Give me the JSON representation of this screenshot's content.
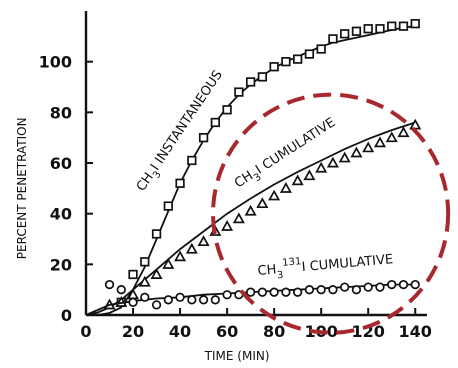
{
  "chart_data": {
    "type": "line",
    "title": "",
    "xlabel": "TIME (MIN)",
    "ylabel": "PERCENT PENETRATION",
    "xlim": [
      0,
      145
    ],
    "ylim": [
      0,
      120
    ],
    "xticks": [
      0,
      20,
      40,
      60,
      80,
      100,
      120,
      140
    ],
    "yticks": [
      0,
      20,
      40,
      60,
      80,
      100
    ],
    "xtick_labels": [
      "0",
      "20",
      "40",
      "60",
      "80",
      "100",
      "120",
      "140"
    ],
    "ytick_labels": [
      "0",
      "20",
      "40",
      "60",
      "80",
      "100"
    ],
    "grid": false,
    "series": [
      {
        "name": "CH3I INSTANTANEOUS",
        "marker": "square",
        "label_parts": [
          "CH",
          "3",
          "I INSTANTANEOUS"
        ],
        "curve": {
          "x": [
            0,
            5,
            10,
            15,
            20,
            25,
            30,
            35,
            40,
            45,
            50,
            55,
            60,
            65,
            70,
            75,
            80,
            85,
            90,
            95,
            100,
            105,
            110,
            115,
            120,
            125,
            130,
            135,
            140
          ],
          "y": [
            0,
            0,
            0.8,
            3,
            10,
            19,
            30,
            41,
            52,
            61,
            69,
            76,
            82,
            87,
            91,
            94.5,
            97.5,
            100,
            102,
            104,
            106,
            107.5,
            108.5,
            109.5,
            110.5,
            111.5,
            112.5,
            113.5,
            114
          ]
        },
        "x": [
          15,
          20,
          25,
          30,
          35,
          40,
          45,
          50,
          55,
          60,
          65,
          70,
          75,
          80,
          85,
          90,
          95,
          100,
          105,
          110,
          115,
          120,
          125,
          130,
          135,
          140
        ],
        "y": [
          5,
          16,
          21,
          32,
          43,
          52,
          61,
          70,
          76,
          81,
          88,
          92,
          94,
          98,
          100,
          101,
          103,
          105,
          109,
          111,
          112,
          113,
          113,
          114,
          114,
          115
        ]
      },
      {
        "name": "CH3I CUMULATIVE",
        "marker": "triangle",
        "label_parts": [
          "CH",
          "3",
          "I CUMULATIVE"
        ],
        "curve": {
          "x": [
            0,
            5,
            10,
            15,
            20,
            30,
            40,
            50,
            60,
            70,
            80,
            90,
            100,
            110,
            120,
            130,
            140
          ],
          "y": [
            0,
            1,
            3,
            6,
            10,
            18,
            26,
            33,
            40,
            46,
            51.5,
            56.5,
            61,
            65.5,
            69.5,
            73,
            76
          ]
        },
        "x": [
          10,
          15,
          20,
          25,
          30,
          35,
          40,
          45,
          50,
          55,
          60,
          65,
          70,
          75,
          80,
          85,
          90,
          95,
          100,
          105,
          110,
          115,
          120,
          125,
          130,
          135,
          140
        ],
        "y": [
          4,
          5,
          8,
          13,
          16,
          20,
          23,
          26,
          29,
          33,
          35,
          38,
          41,
          44,
          47,
          50,
          53,
          55,
          58,
          60,
          62,
          64,
          66,
          68,
          70,
          72,
          75
        ]
      },
      {
        "name": "CH3131I CUMULATIVE",
        "marker": "circle",
        "label_parts": [
          "CH",
          "3",
          "131",
          "I CUMULATIVE"
        ],
        "curve": {
          "x": [
            0,
            10,
            20,
            30,
            40,
            50,
            60,
            70,
            80,
            90,
            100,
            110,
            120,
            130,
            140
          ],
          "y": [
            0,
            4,
            5.5,
            6.5,
            7,
            8,
            8.5,
            9,
            9.5,
            10,
            10.5,
            11,
            11.5,
            12,
            12
          ]
        },
        "x": [
          10,
          15,
          20,
          25,
          30,
          35,
          40,
          45,
          50,
          55,
          60,
          65,
          70,
          75,
          80,
          85,
          90,
          95,
          100,
          105,
          110,
          115,
          120,
          125,
          130,
          135,
          140
        ],
        "y": [
          12,
          10,
          5,
          7,
          4,
          6,
          7,
          6,
          6,
          6,
          8,
          8,
          9,
          9,
          9,
          9,
          9,
          10,
          10,
          10,
          11,
          10,
          11,
          11,
          12,
          12,
          12
        ]
      }
    ],
    "annotations": [
      {
        "type": "dashed-ellipse",
        "color": "#a8282e",
        "center": [
          104,
          40
        ],
        "radius_x": 50,
        "radius_y": 47
      }
    ]
  }
}
